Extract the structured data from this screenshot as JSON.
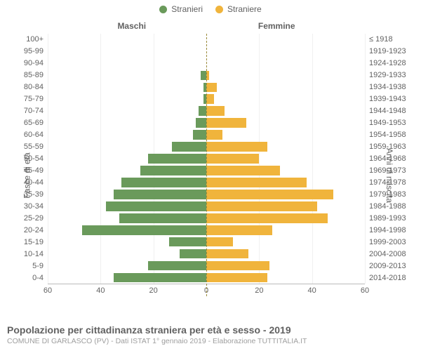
{
  "legend": {
    "male_label": "Stranieri",
    "female_label": "Straniere"
  },
  "side_titles": {
    "left": "Maschi",
    "right": "Femmine"
  },
  "axis_titles": {
    "left": "Fasce di età",
    "right": "Anni di nascita"
  },
  "chart": {
    "type": "population-pyramid",
    "male_color": "#6a9a5b",
    "female_color": "#f0b43c",
    "axis_color": "#bbbbbb",
    "grid_color": "#f0f0f0",
    "center_line_color": "#9a8a3a",
    "text_color": "#616161",
    "x_max": 60,
    "x_ticks": [
      -60,
      -40,
      -20,
      0,
      20,
      40,
      60
    ],
    "x_tick_labels": [
      "60",
      "40",
      "20",
      "0",
      "20",
      "40",
      "60"
    ],
    "age_labels": [
      "100+",
      "95-99",
      "90-94",
      "85-89",
      "80-84",
      "75-79",
      "70-74",
      "65-69",
      "60-64",
      "55-59",
      "50-54",
      "45-49",
      "40-44",
      "35-39",
      "30-34",
      "25-29",
      "20-24",
      "15-19",
      "10-14",
      "5-9",
      "0-4"
    ],
    "birth_labels": [
      "≤ 1918",
      "1919-1923",
      "1924-1928",
      "1929-1933",
      "1934-1938",
      "1939-1943",
      "1944-1948",
      "1949-1953",
      "1954-1958",
      "1959-1963",
      "1964-1968",
      "1969-1973",
      "1974-1978",
      "1979-1983",
      "1984-1988",
      "1989-1993",
      "1994-1998",
      "1999-2003",
      "2004-2008",
      "2009-2013",
      "2014-2018"
    ],
    "male_values": [
      0,
      0,
      0,
      2,
      1,
      1,
      3,
      4,
      5,
      13,
      22,
      25,
      32,
      35,
      38,
      33,
      47,
      14,
      10,
      22,
      35
    ],
    "female_values": [
      0,
      0,
      0,
      1,
      4,
      3,
      7,
      15,
      6,
      23,
      20,
      28,
      38,
      48,
      42,
      46,
      25,
      10,
      16,
      24,
      23
    ]
  },
  "footer": {
    "title": "Popolazione per cittadinanza straniera per età e sesso - 2019",
    "subtitle": "COMUNE DI GARLASCO (PV) - Dati ISTAT 1° gennaio 2019 - Elaborazione TUTTITALIA.IT"
  }
}
